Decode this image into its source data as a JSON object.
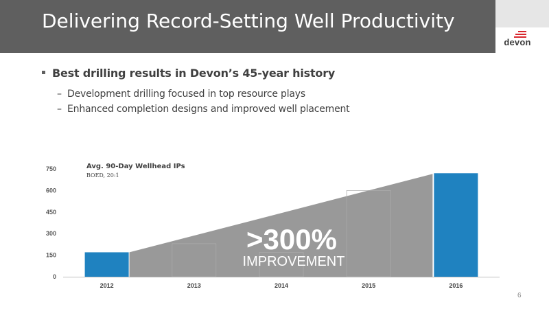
{
  "header": {
    "title": "Delivering Record-Setting Well Productivity"
  },
  "logo": {
    "text": "devon"
  },
  "bullets": {
    "main": "Best drilling results in Devon’s 45-year history",
    "subs": [
      "Development drilling focused in top resource plays",
      "Enhanced completion designs and improved well placement"
    ]
  },
  "chart_data": {
    "type": "bar",
    "title": "Avg. 90-Day Wellhead IPs",
    "subtitle": "BOED, 20:1",
    "categories": [
      "2012",
      "2013",
      "2014",
      "2015",
      "2016"
    ],
    "values": [
      170,
      230,
      170,
      600,
      720
    ],
    "highlighted": [
      "2012",
      "2016"
    ],
    "ylim": [
      0,
      750
    ],
    "yticks": [
      0,
      150,
      300,
      450,
      600,
      750
    ],
    "xlabel": "",
    "ylabel": "",
    "annotation": {
      "headline": ">300%",
      "text": "IMPROVEMENT"
    },
    "colors": {
      "highlight": "#1f82c0",
      "wedge": "#8e8e8e",
      "muted_bar": "#ffffff"
    }
  },
  "footer": {
    "page_number": "6"
  }
}
